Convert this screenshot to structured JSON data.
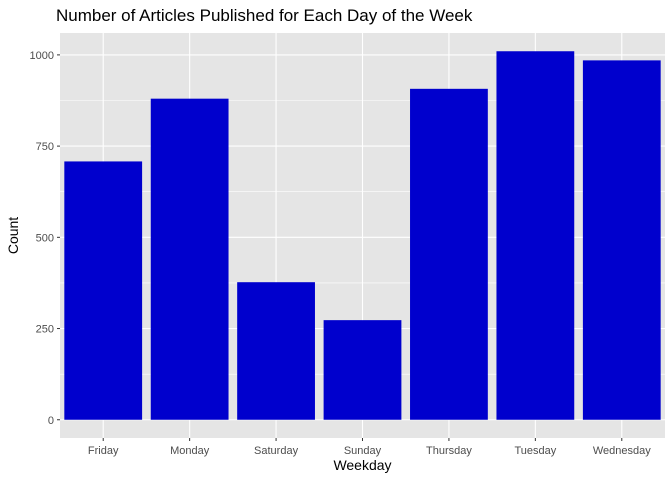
{
  "chart_data": {
    "type": "bar",
    "title": "Number of Articles Published for Each Day of the Week",
    "xlabel": "Weekday",
    "ylabel": "Count",
    "categories": [
      "Friday",
      "Monday",
      "Saturday",
      "Sunday",
      "Thursday",
      "Tuesday",
      "Wednesday"
    ],
    "values": [
      708,
      880,
      377,
      273,
      907,
      1010,
      985
    ],
    "ylim": [
      0,
      1060
    ],
    "yticks": [
      0,
      250,
      500,
      750,
      1000
    ],
    "ytick_labels": [
      "0",
      "250",
      "500",
      "750",
      "1000"
    ],
    "grid": true,
    "legend": "none",
    "bar_color": "#0000CD",
    "panel_background": "#E5E5E5",
    "grid_color": "#FFFFFF"
  }
}
